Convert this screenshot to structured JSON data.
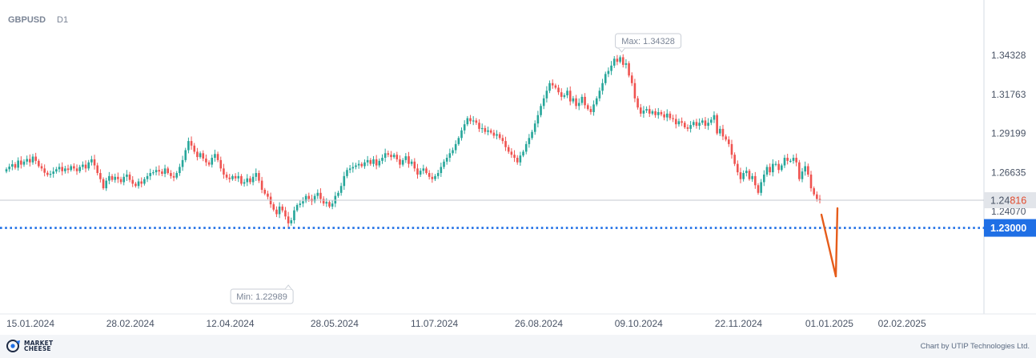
{
  "header": {
    "symbol": "GBPUSD",
    "timeframe": "D1"
  },
  "chart_data": {
    "type": "candlestick",
    "symbol": "GBPUSD",
    "timeframe": "D1",
    "y_ticks": [
      "1.34328",
      "1.31763",
      "1.29199",
      "1.26635",
      "1.24070"
    ],
    "x_ticks": [
      "15.01.2024",
      "28.02.2024",
      "12.04.2024",
      "28.05.2024",
      "11.07.2024",
      "26.08.2024",
      "09.10.2024",
      "22.11.2024",
      "01.01.2025",
      "02.02.2025"
    ],
    "current_price": {
      "label_prefix": "1.24",
      "label_suffix": "816",
      "value": 1.24816
    },
    "target_level": {
      "label": "1.23000",
      "value": 1.23,
      "color": "#1f6fe5"
    },
    "max_label": "Max: 1.34328",
    "min_label": "Min: 1.22989",
    "annotation": "arrow-down",
    "up_color": "#26a69a",
    "down_color": "#ef5350",
    "arrow_color": "#e65c1a",
    "closes": [
      1.2685,
      1.2702,
      1.2718,
      1.2695,
      1.2742,
      1.2715,
      1.2735,
      1.2752,
      1.273,
      1.2768,
      1.274,
      1.2705,
      1.269,
      1.2662,
      1.2648,
      1.2655,
      1.267,
      1.2685,
      1.27,
      1.2672,
      1.269,
      1.268,
      1.2705,
      1.269,
      1.2672,
      1.27,
      1.2715,
      1.269,
      1.273,
      1.275,
      1.271,
      1.266,
      1.262,
      1.256,
      1.261,
      1.264,
      1.2615,
      1.2635,
      1.262,
      1.26,
      1.2635,
      1.265,
      1.2615,
      1.259,
      1.2575,
      1.2605,
      1.259,
      1.262,
      1.264,
      1.266,
      1.2665,
      1.268,
      1.267,
      1.2655,
      1.269,
      1.266,
      1.264,
      1.263,
      1.266,
      1.27,
      1.2745,
      1.281,
      1.287,
      1.284,
      1.28,
      1.2765,
      1.279,
      1.2755,
      1.273,
      1.2715,
      1.276,
      1.2785,
      1.2745,
      1.269,
      1.265,
      1.263,
      1.262,
      1.264,
      1.2625,
      1.264,
      1.259,
      1.26,
      1.2625,
      1.26,
      1.2635,
      1.266,
      1.261,
      1.255,
      1.2525,
      1.2505,
      1.2455,
      1.242,
      1.239,
      1.244,
      1.2415,
      1.2375,
      1.233,
      1.235,
      1.2415,
      1.245,
      1.246,
      1.2475,
      1.251,
      1.249,
      1.2475,
      1.251,
      1.253,
      1.249,
      1.246,
      1.247,
      1.244,
      1.246,
      1.251,
      1.253,
      1.2575,
      1.264,
      1.268,
      1.269,
      1.27,
      1.271,
      1.272,
      1.2705,
      1.273,
      1.2745,
      1.272,
      1.275,
      1.271,
      1.274,
      1.276,
      1.279,
      1.278,
      1.2765,
      1.278,
      1.275,
      1.2715,
      1.2745,
      1.277,
      1.272,
      1.2735,
      1.269,
      1.265,
      1.2675,
      1.269,
      1.266,
      1.2635,
      1.262,
      1.264,
      1.266,
      1.27,
      1.2735,
      1.276,
      1.279,
      1.281,
      1.285,
      1.289,
      1.294,
      1.298,
      1.302,
      1.3,
      1.3005,
      1.299,
      1.295,
      1.2955,
      1.293,
      1.294,
      1.2925,
      1.2905,
      1.2915,
      1.289,
      1.287,
      1.283,
      1.28,
      1.278,
      1.276,
      1.273,
      1.2775,
      1.28,
      1.285,
      1.289,
      1.293,
      1.2985,
      1.304,
      1.31,
      1.315,
      1.32,
      1.325,
      1.3235,
      1.322,
      1.319,
      1.316,
      1.317,
      1.32,
      1.313,
      1.315,
      1.31,
      1.312,
      1.316,
      1.3105,
      1.308,
      1.306,
      1.311,
      1.315,
      1.32,
      1.325,
      1.331,
      1.333,
      1.3365,
      1.341,
      1.339,
      1.342,
      1.337,
      1.338,
      1.33,
      1.325,
      1.315,
      1.309,
      1.305,
      1.307,
      1.308,
      1.305,
      1.3065,
      1.304,
      1.306,
      1.3045,
      1.3025,
      1.305,
      1.302,
      1.3015,
      1.298,
      1.3,
      1.299,
      1.296,
      1.295,
      1.2975,
      1.2995,
      1.297,
      1.299,
      1.3005,
      1.297,
      1.299,
      1.301,
      1.304,
      1.292,
      1.295,
      1.29,
      1.288,
      1.285,
      1.278,
      1.272,
      1.2665,
      1.262,
      1.266,
      1.2675,
      1.262,
      1.264,
      1.258,
      1.253,
      1.26,
      1.265,
      1.27,
      1.2665,
      1.272,
      1.272,
      1.268,
      1.271,
      1.276,
      1.274,
      1.274,
      1.276,
      1.273,
      1.262,
      1.267,
      1.2705,
      1.265,
      1.256,
      1.252,
      1.249,
      1.2485
    ]
  }
}
